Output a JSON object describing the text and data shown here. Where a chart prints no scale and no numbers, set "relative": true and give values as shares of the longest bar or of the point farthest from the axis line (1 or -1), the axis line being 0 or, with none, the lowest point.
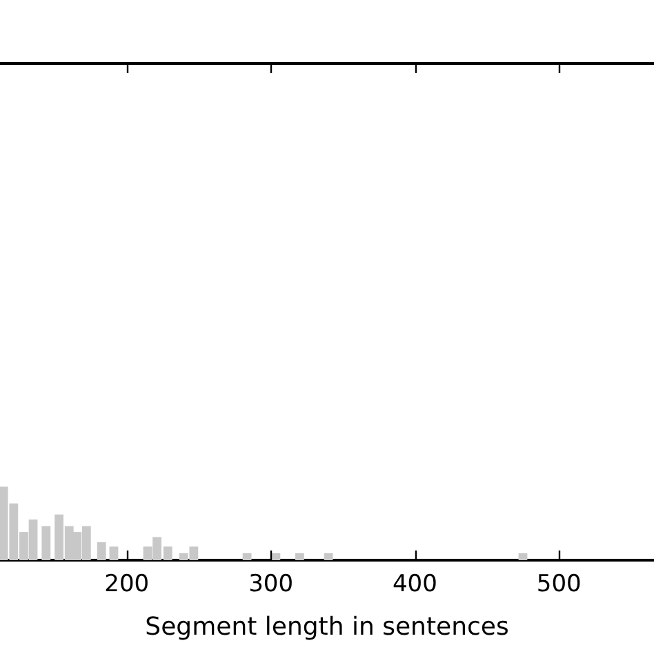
{
  "chart_data": {
    "type": "bar",
    "xlabel": "Segment length in sentences",
    "relative": true,
    "tick_labels": "x",
    "color": "#c8c8c8",
    "grid": false,
    "xlim": [
      112,
      566
    ],
    "xticks": [
      200,
      300,
      400,
      500
    ],
    "x": [
      114.5,
      121.5,
      128.5,
      135,
      144,
      153,
      160,
      165.5,
      172,
      182.5,
      191,
      214.5,
      221,
      228.5,
      239.5,
      246.5,
      283.5,
      303.5,
      320,
      340,
      475
    ],
    "values": [
      1,
      0.77,
      0.38,
      0.55,
      0.46,
      0.62,
      0.46,
      0.38,
      0.46,
      0.24,
      0.18,
      0.18,
      0.31,
      0.18,
      0.09,
      0.18,
      0.09,
      0.09,
      0.09,
      0.09,
      0.09
    ]
  }
}
